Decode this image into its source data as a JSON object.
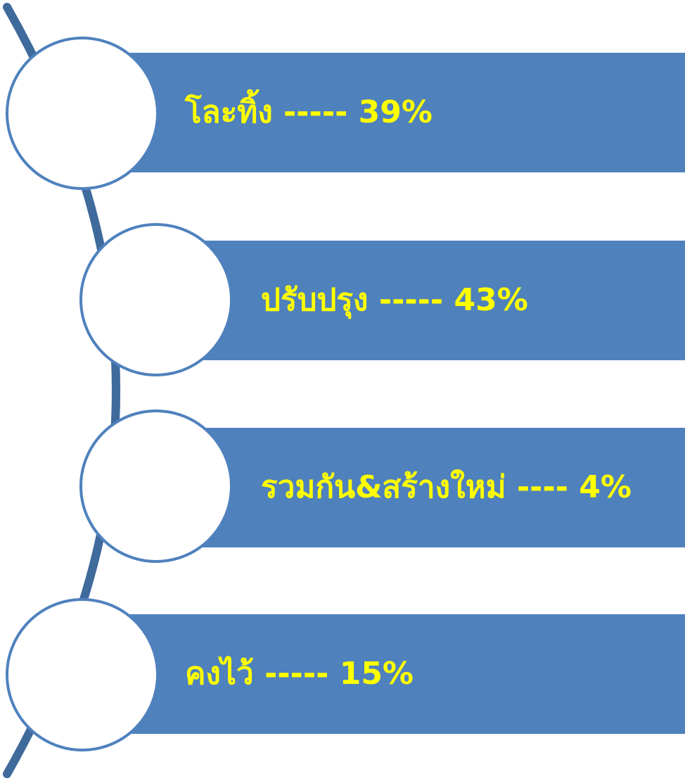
{
  "diagram": {
    "accent_color": "#4f81bd",
    "text_color": "#ffff00",
    "line_color": "#3f6a9c",
    "items": [
      {
        "label": "โละทิ้ง ----- 39%"
      },
      {
        "label": "ปรับปรุง ----- 43%"
      },
      {
        "label": "รวมกัน&สร้างใหม่ ---- 4%"
      },
      {
        "label": "คงไว้ ----- 15%"
      }
    ]
  }
}
